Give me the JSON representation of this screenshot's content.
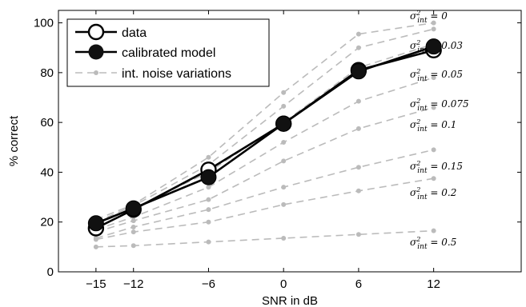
{
  "chart_data": {
    "type": "line",
    "xlabel": "SNR in dB",
    "ylabel": "% correct",
    "x": [
      -15,
      -12,
      -6,
      0,
      6,
      12
    ],
    "x_ticks": [
      -15,
      -12,
      -6,
      0,
      6,
      12
    ],
    "y_ticks": [
      0,
      20,
      40,
      60,
      80,
      100
    ],
    "xlim": [
      -18,
      19
    ],
    "ylim": [
      0,
      105
    ],
    "grid": false,
    "legend_position": "top-left",
    "legend": [
      "data",
      "calibrated model",
      "int. noise variations"
    ],
    "series": [
      {
        "name": "data",
        "values": [
          17.5,
          25,
          41,
          59.5,
          81,
          89
        ],
        "style": "open-circle"
      },
      {
        "name": "calibrated model",
        "values": [
          19.5,
          25.5,
          38,
          59.5,
          80.5,
          90.5
        ],
        "style": "filled-circle"
      }
    ],
    "noise_variations": [
      {
        "label": "0",
        "values": [
          21,
          27,
          46,
          72,
          95.5,
          100
        ]
      },
      {
        "label": "0.03",
        "values": [
          20,
          26.5,
          43,
          66.5,
          90,
          97.5
        ]
      },
      {
        "label": "0.05",
        "values": [
          19,
          25.5,
          40,
          60,
          82,
          91.5
        ]
      },
      {
        "label": "0.075",
        "values": [
          17,
          22,
          34,
          52,
          68.5,
          78
        ]
      },
      {
        "label": "0.1",
        "values": [
          16,
          20.5,
          29,
          44.5,
          57.5,
          66
        ]
      },
      {
        "label": "0.15",
        "values": [
          13.5,
          18,
          25,
          34,
          42,
          49
        ]
      },
      {
        "label": "0.2",
        "values": [
          13,
          16,
          20,
          27,
          32.5,
          37.5
        ]
      },
      {
        "label": "0.5",
        "values": [
          10,
          10.5,
          12,
          13.5,
          15,
          16.5
        ]
      }
    ],
    "annotation_prefix": "σ²int = ",
    "colors": {
      "data": "#000000",
      "model": "#000000",
      "noise": "#bbbbbb",
      "axis": "#000000"
    }
  }
}
